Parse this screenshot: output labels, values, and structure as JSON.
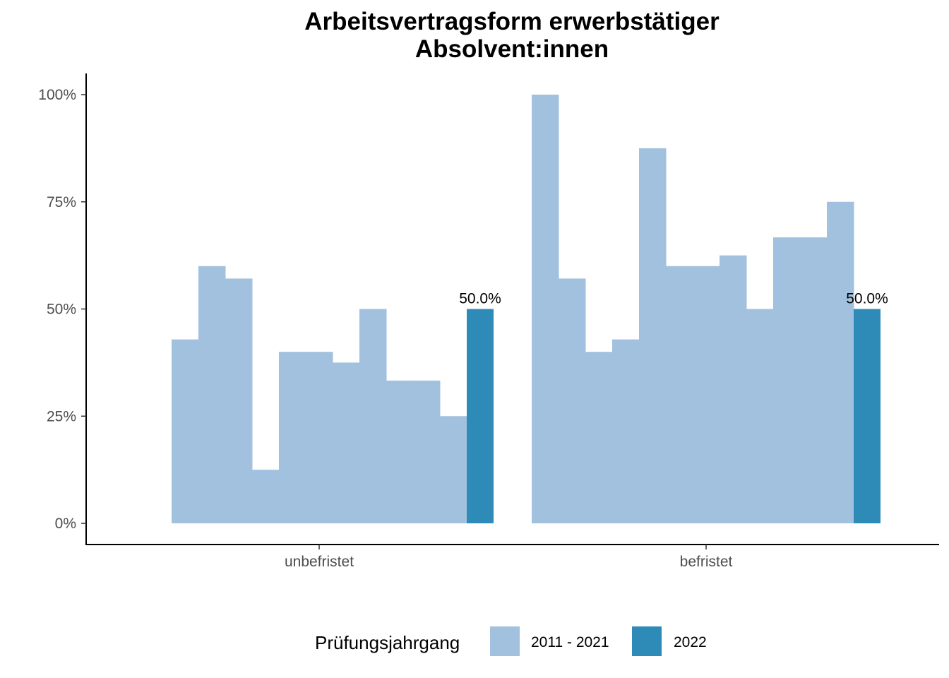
{
  "chart_data": {
    "type": "bar",
    "title_lines": [
      "Arbeitsvertragsform erwerbstätiger",
      "Absolvent:innen"
    ],
    "xlabel": "",
    "ylabel": "",
    "ylim": [
      0,
      1.05
    ],
    "y_ticks": [
      0,
      0.25,
      0.5,
      0.75,
      1.0
    ],
    "y_tick_labels": [
      "0%",
      "25%",
      "50%",
      "75%",
      "100%"
    ],
    "categories": [
      "unbefristet",
      "befristet"
    ],
    "legend": {
      "title": "Prüfungsjahrgang",
      "placement": "bottom",
      "entries": [
        "2011 - 2021",
        "2022"
      ]
    },
    "colors": {
      "2011 - 2021": "#a1c1de",
      "2022": "#2e8bb7"
    },
    "groups": [
      {
        "category": "unbefristet",
        "values_2011_2021": [
          0.429,
          0.6,
          0.571,
          0.125,
          0.4,
          0.4,
          0.375,
          0.5,
          0.333,
          0.333,
          0.25
        ],
        "value_2022": 0.5,
        "label_2022": "50.0%"
      },
      {
        "category": "befristet",
        "values_2011_2021": [
          1.0,
          0.571,
          0.4,
          0.429,
          0.875,
          0.6,
          0.6,
          0.625,
          0.5,
          0.667,
          0.667,
          0.75
        ],
        "value_2022": 0.5,
        "label_2022": "50.0%"
      }
    ],
    "grid": false
  }
}
